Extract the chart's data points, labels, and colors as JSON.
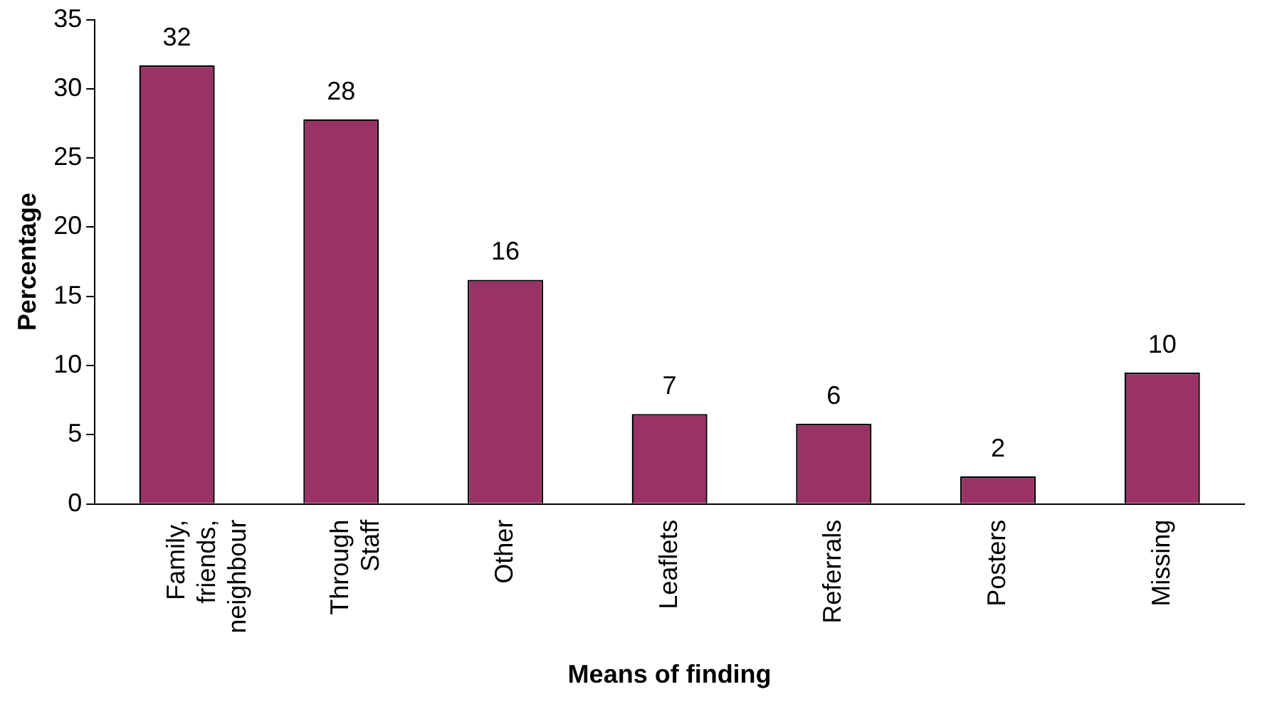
{
  "chart_data": {
    "type": "bar",
    "xlabel": "Means of finding",
    "ylabel": "Percentage",
    "categories": [
      "Family, friends, neighbour",
      "Through Staff",
      "Other",
      "Leaflets",
      "Referrals",
      "Posters",
      "Missing"
    ],
    "values": [
      31.7,
      27.8,
      16.2,
      6.5,
      5.8,
      2.0,
      9.5
    ],
    "value_labels": [
      "32",
      "28",
      "16",
      "7",
      "6",
      "2",
      "10"
    ],
    "color": "#993366",
    "ylim": [
      0,
      35
    ],
    "yticks": [
      0,
      5,
      10,
      15,
      20,
      25,
      30,
      35
    ],
    "grid": false,
    "legend": false
  }
}
